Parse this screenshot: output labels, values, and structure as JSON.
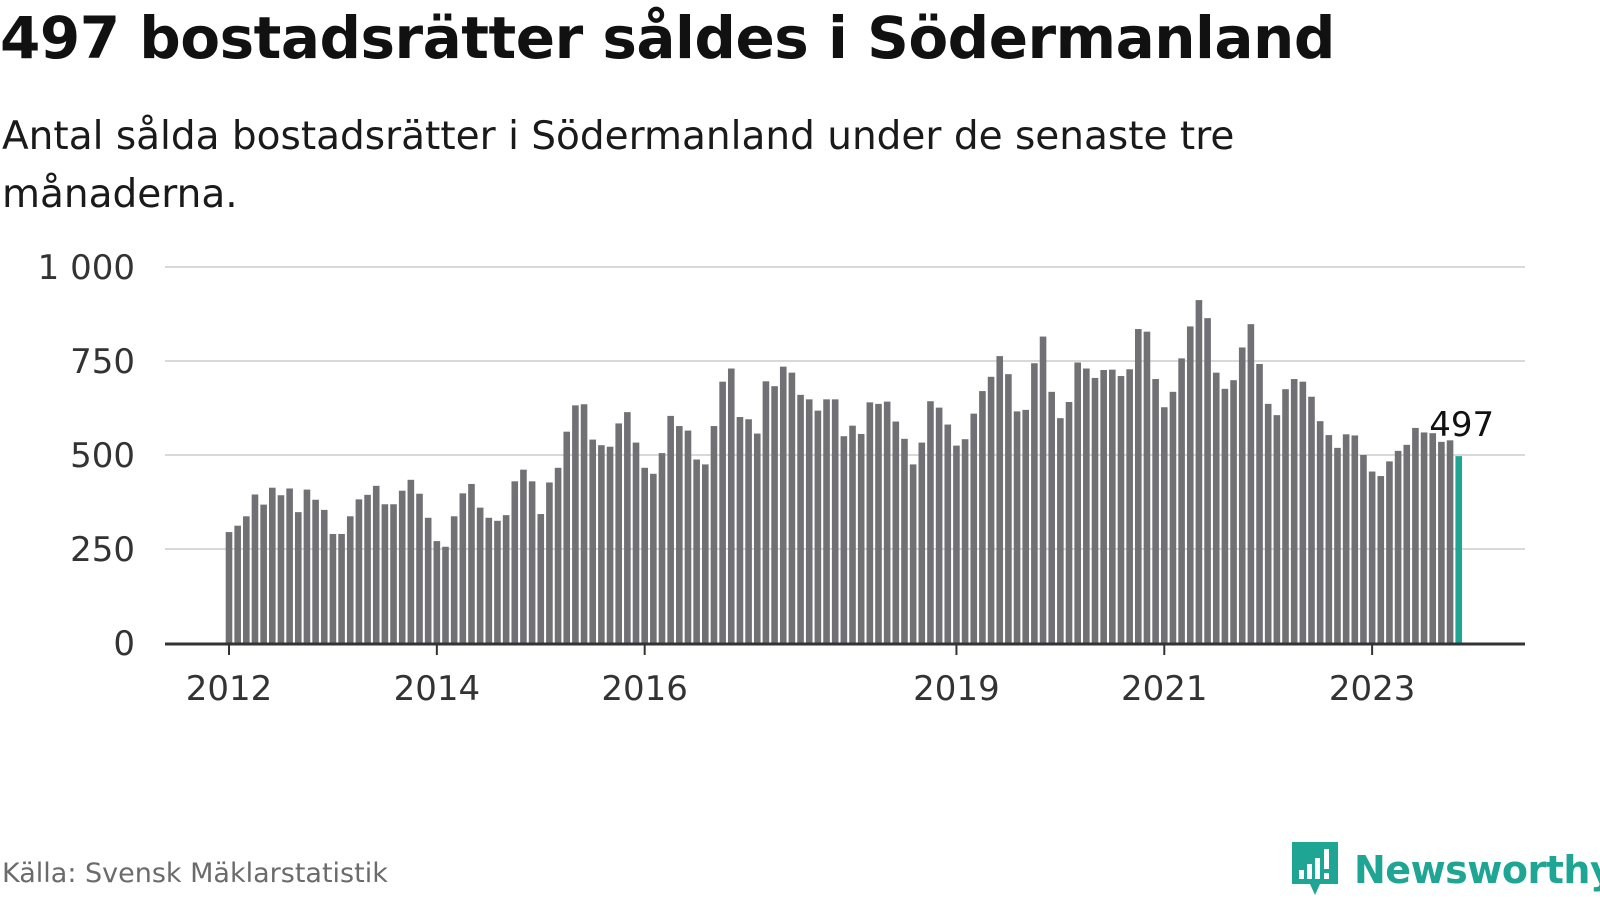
{
  "title": "497 bostadsrätter såldes i Södermanland",
  "subtitle": "Antal sålda bostadsrätter i Södermanland under de senaste tre månaderna.",
  "source": "Källa: Svensk Mäklarstatistik",
  "brand": {
    "name": "Newsworthy",
    "icon": "newsworthy-logo-icon",
    "color": "#1fa593"
  },
  "colors": {
    "bar": "#717075",
    "highlight": "#1fa593",
    "grid": "#d9d9d9",
    "axis": "#333333"
  },
  "chart_data": {
    "type": "bar",
    "title": "497 bostadsrätter såldes i Södermanland",
    "subtitle": "Antal sålda bostadsrätter i Södermanland under de senaste tre månaderna.",
    "xlabel": "",
    "ylabel": "",
    "start": "2012-01",
    "ylim": [
      0,
      1000
    ],
    "yticks": [
      0,
      250,
      500,
      750,
      1000
    ],
    "ytick_labels": [
      "0",
      "250",
      "500",
      "750",
      "1 000"
    ],
    "xtick_labels": [
      "2012",
      "2014",
      "2016",
      "2019",
      "2021",
      "2023"
    ],
    "xtick_months": [
      "2012-01",
      "2014-01",
      "2016-01",
      "2019-01",
      "2021-01",
      "2023-01"
    ],
    "grid": true,
    "highlight_label": "497",
    "values": [
      295,
      312,
      337,
      395,
      368,
      413,
      393,
      411,
      348,
      408,
      381,
      354,
      290,
      290,
      337,
      382,
      394,
      418,
      369,
      369,
      405,
      434,
      397,
      333,
      271,
      256,
      337,
      398,
      423,
      360,
      333,
      325,
      340,
      430,
      461,
      430,
      343,
      427,
      466,
      562,
      632,
      635,
      541,
      526,
      522,
      584,
      614,
      533,
      466,
      450,
      505,
      604,
      577,
      565,
      488,
      475,
      577,
      695,
      730,
      601,
      595,
      557,
      696,
      683,
      735,
      719,
      660,
      648,
      618,
      648,
      648,
      550,
      578,
      556,
      640,
      636,
      642,
      589,
      543,
      475,
      533,
      643,
      626,
      581,
      525,
      542,
      610,
      670,
      708,
      763,
      715,
      616,
      620,
      744,
      815,
      668,
      598,
      641,
      746,
      730,
      705,
      726,
      727,
      710,
      728,
      835,
      828,
      702,
      627,
      668,
      757,
      842,
      912,
      864,
      719,
      676,
      699,
      786,
      848,
      742,
      636,
      606,
      675,
      702,
      695,
      655,
      590,
      553,
      519,
      555,
      552,
      500,
      456,
      444,
      483,
      511,
      527,
      572,
      560,
      558,
      535,
      539,
      497
    ]
  }
}
